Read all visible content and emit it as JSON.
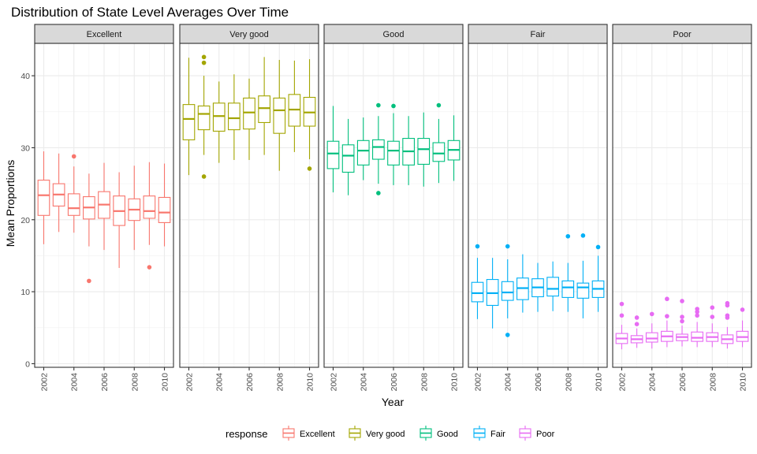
{
  "chart_data": {
    "type": "boxplot",
    "title": "Distribution of State Level Averages Over Time",
    "xlabel": "Year",
    "ylabel": "Mean Proportions",
    "ylim": [
      -0.5,
      44.5
    ],
    "y_ticks": [
      0,
      10,
      20,
      30,
      40
    ],
    "x_ticks": [
      "2002",
      "2004",
      "2006",
      "2008",
      "2010"
    ],
    "years": [
      2002,
      2003,
      2004,
      2005,
      2006,
      2007,
      2008,
      2009,
      2010
    ],
    "xlim": [
      2001.4,
      2010.6
    ],
    "grid": true,
    "legend": {
      "title": "response",
      "position": "bottom",
      "entries": [
        "Excellent",
        "Very good",
        "Good",
        "Fair",
        "Poor"
      ]
    },
    "colors": {
      "Excellent": "#F8766D",
      "Very good": "#A3A500",
      "Good": "#00BF7D",
      "Fair": "#00B0F6",
      "Poor": "#E76BF3"
    },
    "panels": [
      {
        "name": "Excellent",
        "boxes": [
          {
            "year": 2002,
            "lo": 16.6,
            "q1": 20.6,
            "med": 23.4,
            "q3": 25.5,
            "hi": 29.5,
            "out": []
          },
          {
            "year": 2003,
            "lo": 18.3,
            "q1": 21.9,
            "med": 23.5,
            "q3": 25.0,
            "hi": 29.2,
            "out": []
          },
          {
            "year": 2004,
            "lo": 18.2,
            "q1": 20.6,
            "med": 21.6,
            "q3": 23.6,
            "hi": 27.4,
            "out": [
              28.8
            ]
          },
          {
            "year": 2005,
            "lo": 16.3,
            "q1": 20.1,
            "med": 21.7,
            "q3": 23.2,
            "hi": 26.4,
            "out": [
              11.5
            ]
          },
          {
            "year": 2006,
            "lo": 15.8,
            "q1": 20.2,
            "med": 22.1,
            "q3": 23.9,
            "hi": 27.9,
            "out": []
          },
          {
            "year": 2007,
            "lo": 13.3,
            "q1": 19.2,
            "med": 21.2,
            "q3": 23.3,
            "hi": 26.6,
            "out": []
          },
          {
            "year": 2008,
            "lo": 15.8,
            "q1": 19.9,
            "med": 21.4,
            "q3": 22.9,
            "hi": 27.5,
            "out": []
          },
          {
            "year": 2009,
            "lo": 16.5,
            "q1": 20.2,
            "med": 21.2,
            "q3": 23.3,
            "hi": 28.0,
            "out": [
              13.4
            ]
          },
          {
            "year": 2010,
            "lo": 16.3,
            "q1": 19.6,
            "med": 21.0,
            "q3": 23.1,
            "hi": 27.8,
            "out": []
          }
        ]
      },
      {
        "name": "Very good",
        "boxes": [
          {
            "year": 2002,
            "lo": 26.2,
            "q1": 31.1,
            "med": 34.0,
            "q3": 36.0,
            "hi": 42.5,
            "out": []
          },
          {
            "year": 2003,
            "lo": 29.0,
            "q1": 32.5,
            "med": 34.7,
            "q3": 35.8,
            "hi": 40.0,
            "out": [
              42.6,
              41.8,
              26.0
            ]
          },
          {
            "year": 2004,
            "lo": 27.9,
            "q1": 32.3,
            "med": 34.4,
            "q3": 36.2,
            "hi": 39.2,
            "out": []
          },
          {
            "year": 2005,
            "lo": 28.3,
            "q1": 32.5,
            "med": 34.1,
            "q3": 36.2,
            "hi": 40.2,
            "out": []
          },
          {
            "year": 2006,
            "lo": 28.3,
            "q1": 32.6,
            "med": 34.9,
            "q3": 36.9,
            "hi": 39.6,
            "out": []
          },
          {
            "year": 2007,
            "lo": 29.0,
            "q1": 33.5,
            "med": 35.5,
            "q3": 37.2,
            "hi": 42.6,
            "out": []
          },
          {
            "year": 2008,
            "lo": 26.8,
            "q1": 32.0,
            "med": 35.2,
            "q3": 36.9,
            "hi": 42.2,
            "out": []
          },
          {
            "year": 2009,
            "lo": 29.4,
            "q1": 33.0,
            "med": 35.3,
            "q3": 37.4,
            "hi": 42.1,
            "out": []
          },
          {
            "year": 2010,
            "lo": 28.4,
            "q1": 33.0,
            "med": 34.9,
            "q3": 37.0,
            "hi": 42.3,
            "out": [
              27.1
            ]
          }
        ]
      },
      {
        "name": "Good",
        "boxes": [
          {
            "year": 2002,
            "lo": 23.8,
            "q1": 27.1,
            "med": 29.2,
            "q3": 30.9,
            "hi": 35.8,
            "out": []
          },
          {
            "year": 2003,
            "lo": 23.4,
            "q1": 26.6,
            "med": 28.9,
            "q3": 30.4,
            "hi": 34.0,
            "out": []
          },
          {
            "year": 2004,
            "lo": 25.5,
            "q1": 27.6,
            "med": 29.6,
            "q3": 31.0,
            "hi": 34.2,
            "out": []
          },
          {
            "year": 2005,
            "lo": 25.0,
            "q1": 28.4,
            "med": 30.1,
            "q3": 31.1,
            "hi": 34.4,
            "out": [
              35.9,
              23.7
            ]
          },
          {
            "year": 2006,
            "lo": 24.8,
            "q1": 27.6,
            "med": 29.6,
            "q3": 30.9,
            "hi": 34.8,
            "out": [
              35.8
            ]
          },
          {
            "year": 2007,
            "lo": 24.8,
            "q1": 27.6,
            "med": 29.5,
            "q3": 31.3,
            "hi": 34.4,
            "out": []
          },
          {
            "year": 2008,
            "lo": 24.6,
            "q1": 27.7,
            "med": 29.8,
            "q3": 31.3,
            "hi": 34.9,
            "out": []
          },
          {
            "year": 2009,
            "lo": 25.1,
            "q1": 28.1,
            "med": 29.2,
            "q3": 30.7,
            "hi": 34.0,
            "out": [
              35.9
            ]
          },
          {
            "year": 2010,
            "lo": 25.4,
            "q1": 28.3,
            "med": 29.7,
            "q3": 31.0,
            "hi": 34.5,
            "out": []
          }
        ]
      },
      {
        "name": "Fair",
        "boxes": [
          {
            "year": 2002,
            "lo": 6.2,
            "q1": 8.6,
            "med": 9.8,
            "q3": 11.3,
            "hi": 14.7,
            "out": [
              16.3
            ]
          },
          {
            "year": 2003,
            "lo": 4.9,
            "q1": 8.1,
            "med": 9.8,
            "q3": 11.7,
            "hi": 14.7,
            "out": []
          },
          {
            "year": 2004,
            "lo": 6.3,
            "q1": 8.8,
            "med": 9.9,
            "q3": 11.4,
            "hi": 14.5,
            "out": [
              16.3,
              4.0
            ]
          },
          {
            "year": 2005,
            "lo": 7.1,
            "q1": 8.9,
            "med": 10.5,
            "q3": 11.9,
            "hi": 15.2,
            "out": []
          },
          {
            "year": 2006,
            "lo": 7.2,
            "q1": 9.3,
            "med": 10.6,
            "q3": 11.8,
            "hi": 14.0,
            "out": []
          },
          {
            "year": 2007,
            "lo": 7.3,
            "q1": 9.4,
            "med": 10.4,
            "q3": 12.0,
            "hi": 14.2,
            "out": []
          },
          {
            "year": 2008,
            "lo": 7.2,
            "q1": 9.2,
            "med": 10.6,
            "q3": 11.5,
            "hi": 14.0,
            "out": [
              17.7
            ]
          },
          {
            "year": 2009,
            "lo": 6.3,
            "q1": 9.1,
            "med": 10.6,
            "q3": 11.2,
            "hi": 14.3,
            "out": [
              17.8
            ]
          },
          {
            "year": 2010,
            "lo": 7.2,
            "q1": 9.2,
            "med": 10.4,
            "q3": 11.5,
            "hi": 15.0,
            "out": [
              16.2
            ]
          }
        ]
      },
      {
        "name": "Poor",
        "boxes": [
          {
            "year": 2002,
            "lo": 2.0,
            "q1": 2.8,
            "med": 3.5,
            "q3": 4.2,
            "hi": 5.4,
            "out": [
              8.3,
              6.7
            ]
          },
          {
            "year": 2003,
            "lo": 2.2,
            "q1": 2.9,
            "med": 3.4,
            "q3": 3.9,
            "hi": 4.9,
            "out": [
              6.4,
              5.5
            ]
          },
          {
            "year": 2004,
            "lo": 2.1,
            "q1": 3.0,
            "med": 3.5,
            "q3": 4.3,
            "hi": 5.6,
            "out": [
              6.9
            ]
          },
          {
            "year": 2005,
            "lo": 2.3,
            "q1": 3.1,
            "med": 3.8,
            "q3": 4.5,
            "hi": 6.0,
            "out": [
              9.0,
              6.6
            ]
          },
          {
            "year": 2006,
            "lo": 2.4,
            "q1": 3.2,
            "med": 3.7,
            "q3": 4.1,
            "hi": 5.3,
            "out": [
              8.7,
              6.5,
              5.9
            ]
          },
          {
            "year": 2007,
            "lo": 2.3,
            "q1": 3.1,
            "med": 3.6,
            "q3": 4.4,
            "hi": 5.8,
            "out": [
              7.6,
              7.2,
              6.7
            ]
          },
          {
            "year": 2008,
            "lo": 2.3,
            "q1": 3.1,
            "med": 3.7,
            "q3": 4.3,
            "hi": 5.6,
            "out": [
              7.8,
              6.5
            ]
          },
          {
            "year": 2009,
            "lo": 2.1,
            "q1": 2.8,
            "med": 3.4,
            "q3": 4.0,
            "hi": 5.1,
            "out": [
              8.4,
              8.1,
              6.7,
              6.4
            ]
          },
          {
            "year": 2010,
            "lo": 2.3,
            "q1": 3.1,
            "med": 3.7,
            "q3": 4.5,
            "hi": 6.0,
            "out": [
              7.5
            ]
          }
        ]
      }
    ]
  }
}
